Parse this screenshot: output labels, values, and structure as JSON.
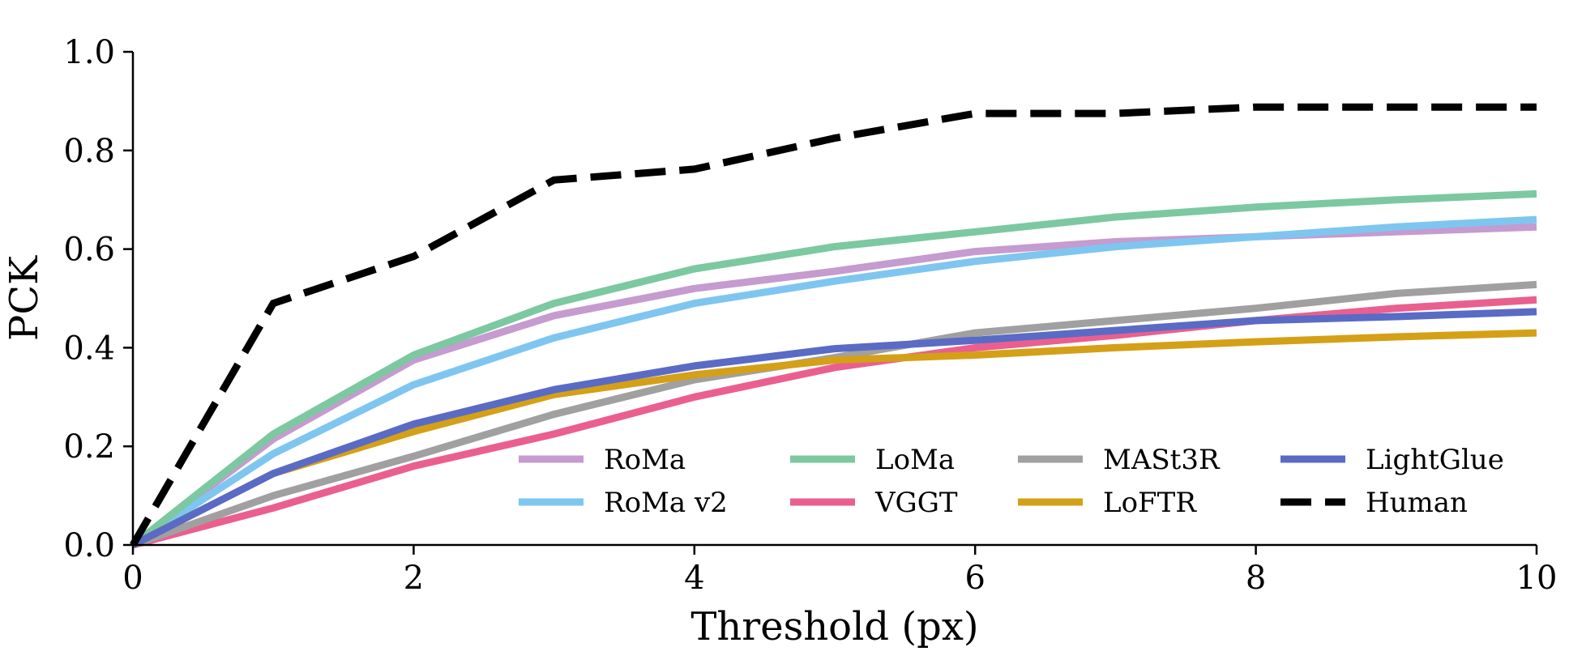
{
  "chart_data": {
    "type": "line",
    "title": "",
    "xlabel": "Threshold (px)",
    "ylabel": "PCK",
    "xlim": [
      0,
      10
    ],
    "ylim": [
      0,
      1.0
    ],
    "x_ticks": [
      "0",
      "2",
      "4",
      "6",
      "8",
      "10"
    ],
    "y_ticks": [
      "0.0",
      "0.2",
      "0.4",
      "0.6",
      "0.8",
      "1.0"
    ],
    "grid": false,
    "legend_position": "bottom-right",
    "x": [
      0,
      1,
      2,
      3,
      4,
      5,
      6,
      7,
      8,
      9,
      10
    ],
    "series": [
      {
        "name": "RoMa",
        "color": "#c59bd0",
        "dash": "solid",
        "values": [
          0.0,
          0.215,
          0.375,
          0.465,
          0.52,
          0.555,
          0.595,
          0.615,
          0.625,
          0.635,
          0.645
        ]
      },
      {
        "name": "RoMa v2",
        "color": "#7ec6f0",
        "dash": "solid",
        "values": [
          0.0,
          0.185,
          0.325,
          0.42,
          0.49,
          0.535,
          0.575,
          0.605,
          0.625,
          0.645,
          0.66
        ]
      },
      {
        "name": "LoMa",
        "color": "#7cc8a1",
        "dash": "solid",
        "values": [
          0.0,
          0.225,
          0.385,
          0.49,
          0.56,
          0.605,
          0.635,
          0.665,
          0.685,
          0.7,
          0.712
        ]
      },
      {
        "name": "VGGT",
        "color": "#ea5f8f",
        "dash": "solid",
        "values": [
          0.0,
          0.075,
          0.16,
          0.225,
          0.3,
          0.36,
          0.4,
          0.425,
          0.455,
          0.48,
          0.497
        ]
      },
      {
        "name": "MASt3R",
        "color": "#a0a0a0",
        "dash": "solid",
        "values": [
          0.0,
          0.1,
          0.18,
          0.265,
          0.335,
          0.38,
          0.43,
          0.455,
          0.48,
          0.51,
          0.528
        ]
      },
      {
        "name": "LoFTR",
        "color": "#d4a017",
        "dash": "solid",
        "values": [
          0.0,
          0.145,
          0.23,
          0.305,
          0.345,
          0.375,
          0.385,
          0.4,
          0.412,
          0.422,
          0.43
        ]
      },
      {
        "name": "LightGlue",
        "color": "#5a6bc5",
        "dash": "solid",
        "values": [
          0.0,
          0.145,
          0.245,
          0.315,
          0.363,
          0.398,
          0.415,
          0.435,
          0.455,
          0.463,
          0.473
        ]
      },
      {
        "name": "Human",
        "color": "#000000",
        "dash": "dashed",
        "values": [
          0.0,
          0.49,
          0.585,
          0.74,
          0.762,
          0.825,
          0.875,
          0.875,
          0.888,
          0.888,
          0.888
        ]
      }
    ]
  }
}
